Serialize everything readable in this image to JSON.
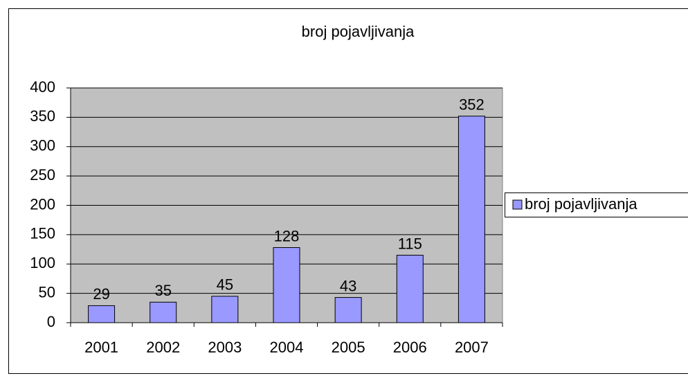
{
  "chart_data": {
    "type": "bar",
    "title": "broj pojavljivanja",
    "categories": [
      "2001",
      "2002",
      "2003",
      "2004",
      "2005",
      "2006",
      "2007"
    ],
    "series": [
      {
        "name": "broj pojavljivanja",
        "color": "#9999ff",
        "values": [
          29,
          35,
          45,
          128,
          43,
          115,
          352
        ]
      }
    ],
    "ylim": [
      0,
      400
    ],
    "yticks": [
      0,
      50,
      100,
      150,
      200,
      250,
      300,
      350,
      400
    ],
    "grid": true,
    "legend": "right"
  }
}
